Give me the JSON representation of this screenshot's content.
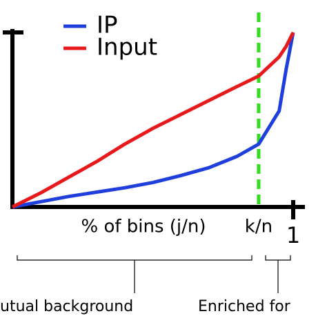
{
  "chart_data": {
    "type": "line",
    "x": [
      0,
      0.1,
      0.2,
      0.3,
      0.4,
      0.5,
      0.6,
      0.7,
      0.8,
      0.877,
      0.95,
      0.975,
      1
    ],
    "series": [
      {
        "name": "IP",
        "color": "#1f3fdc",
        "values": [
          0,
          0.03,
          0.06,
          0.085,
          0.11,
          0.14,
          0.18,
          0.225,
          0.29,
          0.36,
          0.55,
          0.79,
          1
        ]
      },
      {
        "name": "Input",
        "color": "#e8191b",
        "values": [
          0,
          0.08,
          0.17,
          0.26,
          0.36,
          0.45,
          0.53,
          0.61,
          0.69,
          0.75,
          0.86,
          0.92,
          1
        ]
      }
    ],
    "xlim": [
      0,
      1
    ],
    "ylim": [
      0,
      1
    ],
    "xticks": [
      1
    ],
    "x_label": "% of bins (j/n)",
    "vline": {
      "value": 0.877,
      "label": "k/n",
      "color": "#33dd22"
    },
    "regions": [
      "utual background",
      "Enriched for"
    ],
    "legend": "top-left"
  }
}
